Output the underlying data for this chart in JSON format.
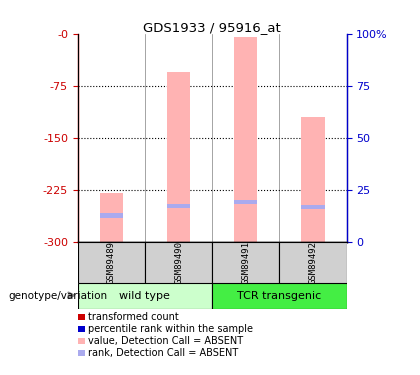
{
  "title": "GDS1933 / 95916_at",
  "samples": [
    "GSM89489",
    "GSM89490",
    "GSM89491",
    "GSM89492"
  ],
  "pink_bar_tops": [
    -230,
    -55,
    -5,
    -120
  ],
  "pink_bar_bottom": -300,
  "blue_bar_centers": [
    -262,
    -248,
    -242,
    -250
  ],
  "left_ylim": [
    -300,
    0
  ],
  "left_yticks": [
    -300,
    -225,
    -150,
    -75,
    0
  ],
  "left_yticklabels": [
    "-300",
    "-225",
    "-150",
    "-75",
    "-0"
  ],
  "right_yticks": [
    0,
    25,
    50,
    75,
    100
  ],
  "right_yticklabels": [
    "0",
    "25",
    "50",
    "75",
    "100%"
  ],
  "pink_color": "#ffb3b3",
  "blue_color": "#aaaaee",
  "red_color": "#cc0000",
  "blue_dark": "#0000cc",
  "wild_type_color": "#ccffcc",
  "tcr_color": "#44ee44",
  "sample_bg_color": "#d0d0d0",
  "legend_items": [
    {
      "color": "#cc0000",
      "label": "transformed count"
    },
    {
      "color": "#0000cc",
      "label": "percentile rank within the sample"
    },
    {
      "color": "#ffb3b3",
      "label": "value, Detection Call = ABSENT"
    },
    {
      "color": "#aaaaee",
      "label": "rank, Detection Call = ABSENT"
    }
  ]
}
